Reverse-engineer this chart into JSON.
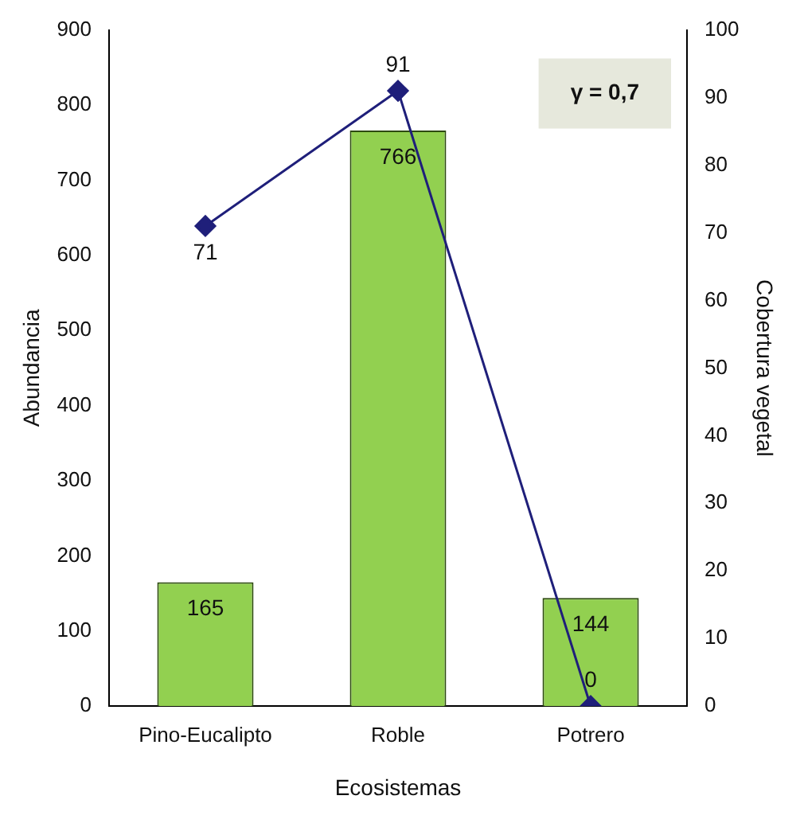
{
  "chart_data": {
    "type": "bar",
    "xlabel": "Ecosistemas",
    "ylabel": "Abundancia",
    "y2label": "Cobertura vegetal",
    "categories": [
      "Pino-Eucalipto",
      "Roble",
      "Potrero"
    ],
    "series": [
      {
        "color": "#92d050",
        "values": [
          165,
          766,
          144
        ]
      },
      {
        "type": "line",
        "axis": "y2",
        "color": "#1f1f7a",
        "values": [
          71,
          91,
          0
        ]
      }
    ],
    "ylim": [
      0,
      900
    ],
    "yticks": [
      0,
      100,
      200,
      300,
      400,
      500,
      600,
      700,
      800,
      900
    ],
    "y2lim": [
      0,
      100
    ],
    "y2ticks": [
      0,
      10,
      20,
      30,
      40,
      50,
      60,
      70,
      80,
      90,
      100
    ],
    "annotations": [
      "γ = 0,7"
    ],
    "data_labels": true,
    "grid": false,
    "marker": "diamond",
    "legend": false
  }
}
